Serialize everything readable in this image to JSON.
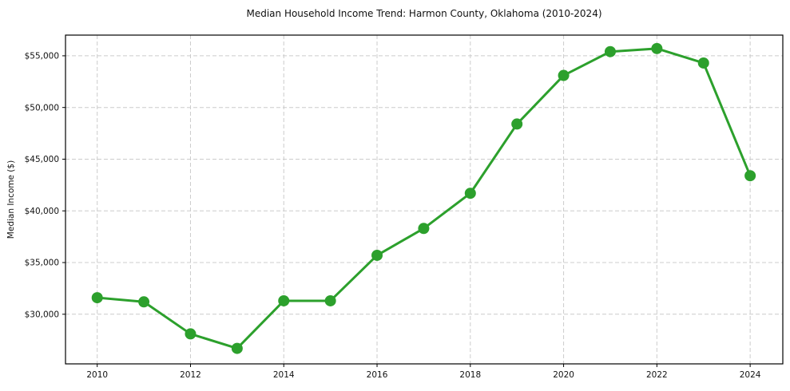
{
  "chart_data": {
    "type": "line",
    "title": "Median Household Income Trend: Harmon County, Oklahoma (2010-2024)",
    "xlabel": "",
    "ylabel": "Median Income ($)",
    "x": [
      2010,
      2011,
      2012,
      2013,
      2014,
      2015,
      2016,
      2017,
      2018,
      2019,
      2020,
      2021,
      2022,
      2023,
      2024
    ],
    "series": [
      {
        "name": "Median Household Income",
        "values": [
          31600,
          31200,
          28100,
          26700,
          31300,
          31300,
          35700,
          38300,
          41700,
          48400,
          53100,
          55400,
          55700,
          54300,
          43400
        ]
      }
    ],
    "xlim": [
      2009.32,
      2024.7
    ],
    "ylim": [
      25200,
      57000
    ],
    "xticks": [
      2010,
      2012,
      2014,
      2016,
      2018,
      2020,
      2022,
      2024
    ],
    "yticks": [
      30000,
      35000,
      40000,
      45000,
      50000,
      55000
    ],
    "ytick_prefix": "$",
    "grid": true,
    "grid_style": "dashed",
    "legend_position": "none",
    "colors": {
      "line": "#2ca02c",
      "marker": "#2ca02c",
      "grid": "#cccccc",
      "axis": "#000000",
      "background": "#ffffff",
      "text": "#111111"
    },
    "marker_radius": 7,
    "line_width": 3
  }
}
